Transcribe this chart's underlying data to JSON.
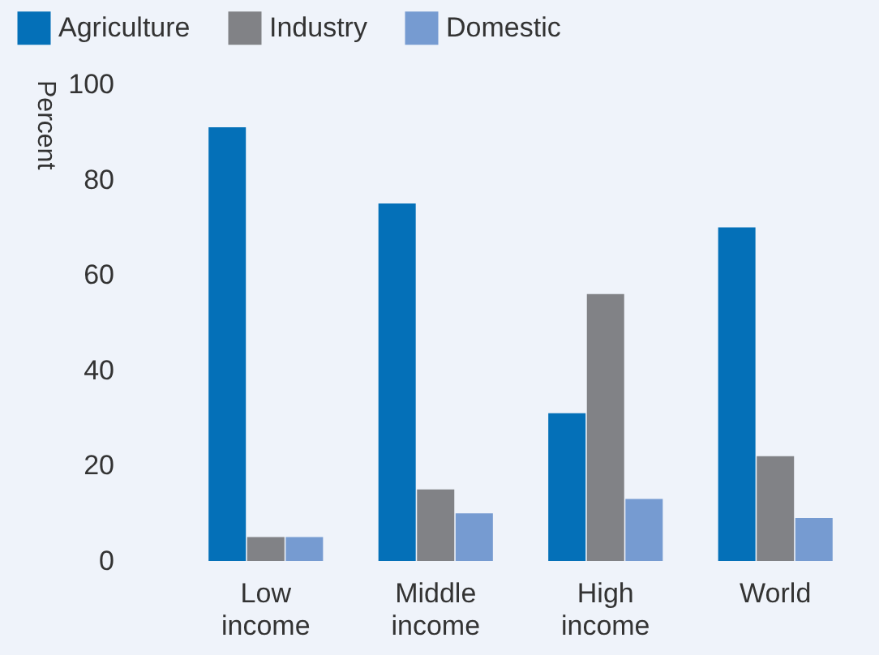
{
  "chart_data": {
    "type": "bar",
    "ylabel": "Percent",
    "categories": [
      "Low income",
      "Middle income",
      "High income",
      "World"
    ],
    "series": [
      {
        "name": "Agriculture",
        "color": "#0470b8",
        "values": [
          91,
          75,
          31,
          70
        ]
      },
      {
        "name": "Industry",
        "color": "#818286",
        "values": [
          5,
          15,
          56,
          22
        ]
      },
      {
        "name": "Domestic",
        "color": "#769bd1",
        "values": [
          5,
          10,
          13,
          9
        ]
      }
    ],
    "ylim": [
      0,
      100
    ],
    "yticks": [
      0,
      20,
      40,
      60,
      80,
      100
    ],
    "grid": false,
    "legend": "top left"
  }
}
